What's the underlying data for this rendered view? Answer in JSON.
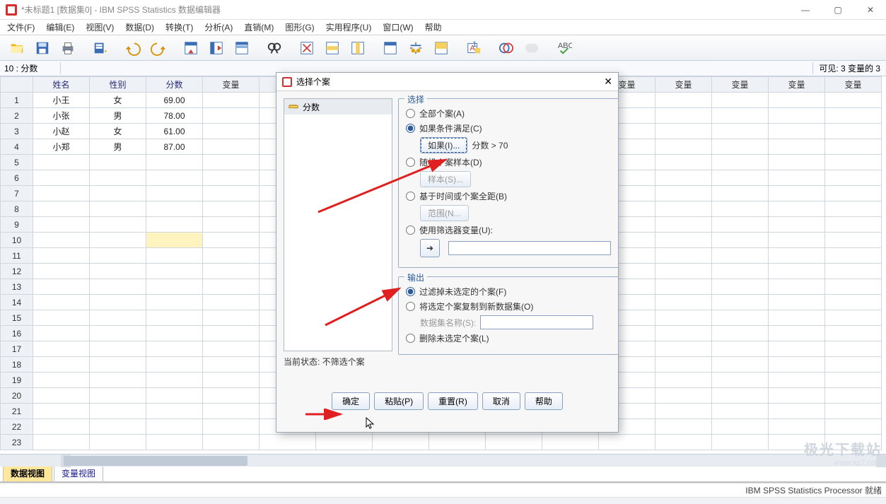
{
  "window": {
    "title": "*未标题1 [数据集0] - IBM SPSS Statistics 数据编辑器"
  },
  "menu": {
    "file": "文件(F)",
    "edit": "编辑(E)",
    "view": "视图(V)",
    "data": "数据(D)",
    "transform": "转换(T)",
    "analyze": "分析(A)",
    "direct": "直销(M)",
    "graphs": "图形(G)",
    "util": "实用程序(U)",
    "window": "窗口(W)",
    "help": "帮助"
  },
  "infobar": {
    "cell_ref": "10 : 分数",
    "cell_value": "",
    "visible": "可见: 3 变量的 3"
  },
  "columns": {
    "named": [
      "姓名",
      "性别",
      "分数"
    ],
    "placeholder": "变量",
    "placeholder_count": 12
  },
  "rows": [
    {
      "n": "1",
      "name": "小王",
      "sex": "女",
      "score": "69.00"
    },
    {
      "n": "2",
      "name": "小张",
      "sex": "男",
      "score": "78.00"
    },
    {
      "n": "3",
      "name": "小赵",
      "sex": "女",
      "score": "61.00"
    },
    {
      "n": "4",
      "name": "小郑",
      "sex": "男",
      "score": "87.00"
    }
  ],
  "selected_cell": {
    "row": 10,
    "col": 3
  },
  "viewtabs": {
    "data": "数据视图",
    "variable": "变量视图"
  },
  "status": {
    "processor": "IBM SPSS Statistics Processor 就绪"
  },
  "dialog": {
    "title": "选择个案",
    "var_in_list": "分数",
    "status_line": "当前状态: 不筛选个案",
    "select": {
      "legend": "选择",
      "opt_all": "全部个案(A)",
      "opt_if": "如果条件满足(C)",
      "btn_if": "如果(I)...",
      "if_text": "分数 > 70",
      "opt_random": "随机个案样本(D)",
      "btn_sample": "样本(S)...",
      "opt_range": "基于时间或个案全距(B)",
      "btn_range": "范围(N...",
      "opt_filter": "使用筛选器变量(U):",
      "filter_value": ""
    },
    "output": {
      "legend": "输出",
      "opt_filter_out": "过滤掉未选定的个案(F)",
      "opt_copy": "将选定个案复制到新数据集(O)",
      "dataset_label": "数据集名称(S):",
      "dataset_value": "",
      "opt_delete": "删除未选定个案(L)"
    },
    "buttons": {
      "ok": "确定",
      "paste": "粘贴(P)",
      "reset": "重置(R)",
      "cancel": "取消",
      "help": "帮助"
    }
  },
  "watermark": {
    "l1": "极光下载站",
    "l2": "www.xz7.com"
  },
  "colors": {
    "border": "#c5d0dc",
    "header_bg": "#eef1f5",
    "accent": "#2a5a9a",
    "selected": "#fff3c0",
    "tab_active": "#ffe79b"
  }
}
